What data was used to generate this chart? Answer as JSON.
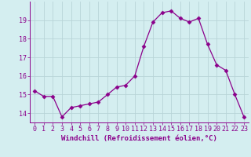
{
  "x": [
    0,
    1,
    2,
    3,
    4,
    5,
    6,
    7,
    8,
    9,
    10,
    11,
    12,
    13,
    14,
    15,
    16,
    17,
    18,
    19,
    20,
    21,
    22,
    23
  ],
  "y": [
    15.2,
    14.9,
    14.9,
    13.8,
    14.3,
    14.4,
    14.5,
    14.6,
    15.0,
    15.4,
    15.5,
    16.0,
    17.6,
    18.9,
    19.4,
    19.5,
    19.1,
    18.9,
    19.1,
    17.7,
    16.6,
    16.3,
    15.0,
    13.8
  ],
  "line_color": "#8b008b",
  "marker": "D",
  "marker_size": 2.5,
  "bg_color": "#d4eef0",
  "grid_color": "#b8d4d8",
  "xlabel": "Windchill (Refroidissement éolien,°C)",
  "ylim": [
    13.5,
    20.0
  ],
  "yticks": [
    14,
    15,
    16,
    17,
    18,
    19
  ],
  "xticks": [
    0,
    1,
    2,
    3,
    4,
    5,
    6,
    7,
    8,
    9,
    10,
    11,
    12,
    13,
    14,
    15,
    16,
    17,
    18,
    19,
    20,
    21,
    22,
    23
  ],
  "label_fontsize": 6.5,
  "tick_fontsize": 6.0
}
